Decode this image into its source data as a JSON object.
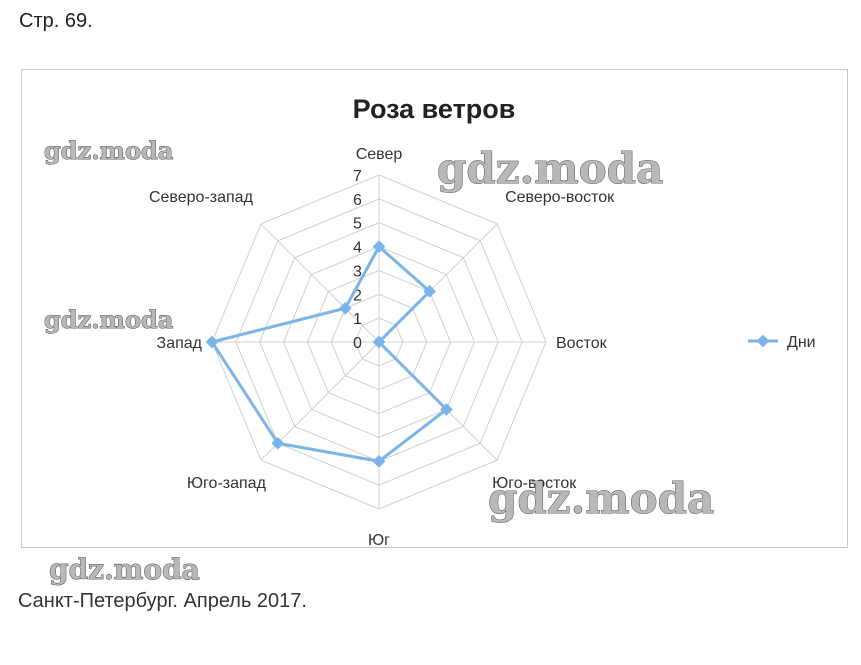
{
  "header": {
    "page_label": "Стр. 69."
  },
  "footer": {
    "caption": "Санкт-Петербург. Апрель 2017."
  },
  "watermarks": [
    "gdz.moda",
    "gdz.moda",
    "gdz.moda",
    "gdz.moda",
    "gdz.moda"
  ],
  "chart_data": {
    "type": "radar",
    "title": "Роза ветров",
    "categories": [
      "Север",
      "Северо-восток",
      "Восток",
      "Юго-восток",
      "Юг",
      "Юго-запад",
      "Запад",
      "Северо-запад"
    ],
    "series": [
      {
        "name": "Дни",
        "values": [
          4,
          3,
          0,
          4,
          5,
          6,
          7,
          2
        ],
        "color": "#7ab4e8"
      }
    ],
    "r_ticks": [
      "0",
      "1",
      "2",
      "3",
      "4",
      "5",
      "6",
      "7"
    ],
    "rlim": [
      0,
      7
    ],
    "legend": "right",
    "grid": true
  }
}
